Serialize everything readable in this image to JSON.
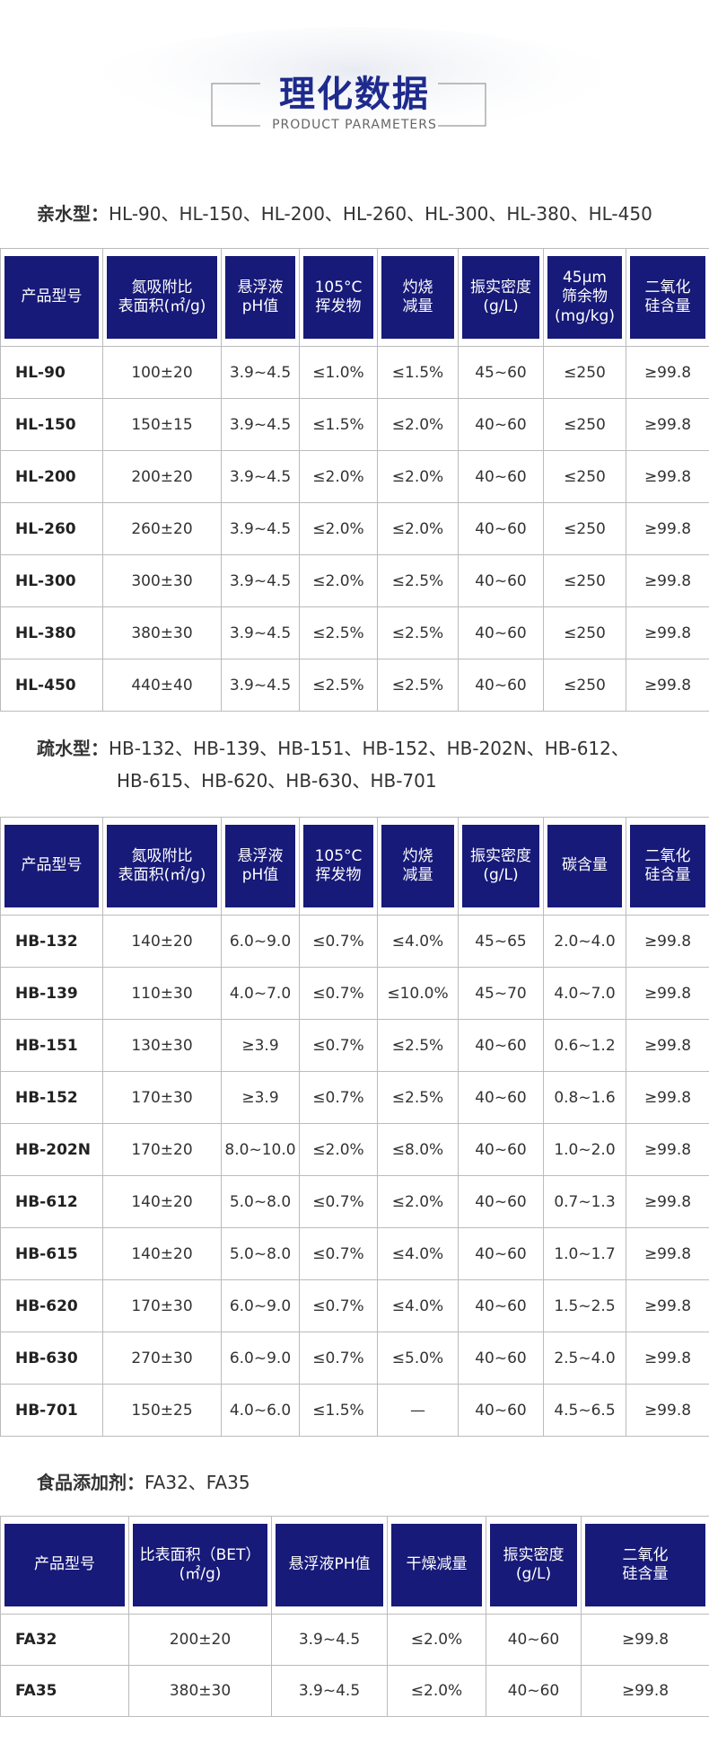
{
  "header": {
    "title": "理化数据",
    "subtitle": "PRODUCT PARAMETERS"
  },
  "sections": [
    {
      "label": "亲水型：",
      "lines": [
        "HL-90、HL-150、HL-200、HL-260、HL-300、HL-380、HL-450"
      ],
      "table": {
        "columns": [
          "产品型号",
          "氮吸附比\n表面积(㎡/g)",
          "悬浮液\npH值",
          "105°C\n挥发物",
          "灼烧\n减量",
          "振实密度\n(g/L)",
          "45μm\n筛余物\n(mg/kg)",
          "二氧化\n硅含量"
        ],
        "rows": [
          [
            "HL-90",
            "100±20",
            "3.9~4.5",
            "≤1.0%",
            "≤1.5%",
            "45~60",
            "≤250",
            "≥99.8"
          ],
          [
            "HL-150",
            "150±15",
            "3.9~4.5",
            "≤1.5%",
            "≤2.0%",
            "40~60",
            "≤250",
            "≥99.8"
          ],
          [
            "HL-200",
            "200±20",
            "3.9~4.5",
            "≤2.0%",
            "≤2.0%",
            "40~60",
            "≤250",
            "≥99.8"
          ],
          [
            "HL-260",
            "260±20",
            "3.9~4.5",
            "≤2.0%",
            "≤2.0%",
            "40~60",
            "≤250",
            "≥99.8"
          ],
          [
            "HL-300",
            "300±30",
            "3.9~4.5",
            "≤2.0%",
            "≤2.5%",
            "40~60",
            "≤250",
            "≥99.8"
          ],
          [
            "HL-380",
            "380±30",
            "3.9~4.5",
            "≤2.5%",
            "≤2.5%",
            "40~60",
            "≤250",
            "≥99.8"
          ],
          [
            "HL-450",
            "440±40",
            "3.9~4.5",
            "≤2.5%",
            "≤2.5%",
            "40~60",
            "≤250",
            "≥99.8"
          ]
        ]
      }
    },
    {
      "label": "疏水型：",
      "lines": [
        "HB-132、HB-139、HB-151、HB-152、HB-202N、HB-612、",
        "HB-615、HB-620、HB-630、HB-701"
      ],
      "table": {
        "columns": [
          "产品型号",
          "氮吸附比\n表面积(㎡/g)",
          "悬浮液\npH值",
          "105°C\n挥发物",
          "灼烧\n减量",
          "振实密度\n(g/L)",
          "碳含量",
          "二氧化\n硅含量"
        ],
        "rows": [
          [
            "HB-132",
            "140±20",
            "6.0~9.0",
            "≤0.7%",
            "≤4.0%",
            "45~65",
            "2.0~4.0",
            "≥99.8"
          ],
          [
            "HB-139",
            "110±30",
            "4.0~7.0",
            "≤0.7%",
            "≤10.0%",
            "45~70",
            "4.0~7.0",
            "≥99.8"
          ],
          [
            "HB-151",
            "130±30",
            "≥3.9",
            "≤0.7%",
            "≤2.5%",
            "40~60",
            "0.6~1.2",
            "≥99.8"
          ],
          [
            "HB-152",
            "170±30",
            "≥3.9",
            "≤0.7%",
            "≤2.5%",
            "40~60",
            "0.8~1.6",
            "≥99.8"
          ],
          [
            "HB-202N",
            "170±20",
            "8.0~10.0",
            "≤2.0%",
            "≤8.0%",
            "40~60",
            "1.0~2.0",
            "≥99.8"
          ],
          [
            "HB-612",
            "140±20",
            "5.0~8.0",
            "≤0.7%",
            "≤2.0%",
            "40~60",
            "0.7~1.3",
            "≥99.8"
          ],
          [
            "HB-615",
            "140±20",
            "5.0~8.0",
            "≤0.7%",
            "≤4.0%",
            "40~60",
            "1.0~1.7",
            "≥99.8"
          ],
          [
            "HB-620",
            "170±30",
            "6.0~9.0",
            "≤0.7%",
            "≤4.0%",
            "40~60",
            "1.5~2.5",
            "≥99.8"
          ],
          [
            "HB-630",
            "270±30",
            "6.0~9.0",
            "≤0.7%",
            "≤5.0%",
            "40~60",
            "2.5~4.0",
            "≥99.8"
          ],
          [
            "HB-701",
            "150±25",
            "4.0~6.0",
            "≤1.5%",
            "—",
            "40~60",
            "4.5~6.5",
            "≥99.8"
          ]
        ]
      }
    },
    {
      "label": "食品添加剂：",
      "lines": [
        "FA32、FA35"
      ],
      "table": {
        "columns": [
          "产品型号",
          "比表面积（BET）\n(㎡/g)",
          "悬浮液PH值",
          "干燥减量",
          "振实密度\n(g/L)",
          "二氧化\n硅含量"
        ],
        "rows": [
          [
            "FA32",
            "200±20",
            "3.9~4.5",
            "≤2.0%",
            "40~60",
            "≥99.8"
          ],
          [
            "FA35",
            "380±30",
            "3.9~4.5",
            "≤2.0%",
            "40~60",
            "≥99.8"
          ]
        ]
      }
    }
  ]
}
